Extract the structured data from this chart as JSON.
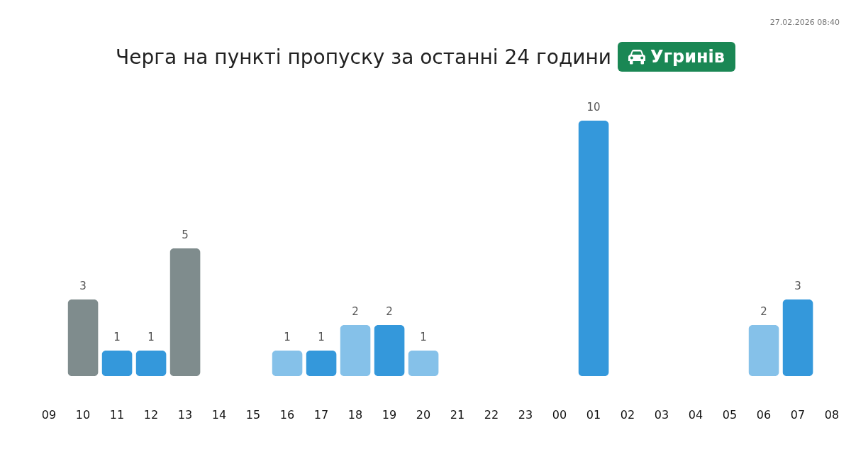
{
  "chart_data": {
    "type": "bar",
    "title": "Черга на пункті пропуску за останні 24 години",
    "subtitle": "Угринів",
    "annotations": [
      "27.02.2026 08:40"
    ],
    "categories": [
      "09",
      "10",
      "11",
      "12",
      "13",
      "14",
      "15",
      "16",
      "17",
      "18",
      "19",
      "20",
      "21",
      "22",
      "23",
      "00",
      "01",
      "02",
      "03",
      "04",
      "05",
      "06",
      "07",
      "08"
    ],
    "values": [
      null,
      3,
      1,
      1,
      5,
      null,
      null,
      1,
      1,
      2,
      2,
      1,
      null,
      null,
      null,
      null,
      10,
      null,
      null,
      null,
      null,
      2,
      3,
      null
    ],
    "colors": [
      null,
      "#7f8c8d",
      "#3498db",
      "#3498db",
      "#7f8c8d",
      null,
      null,
      "#85c1e9",
      "#3498db",
      "#85c1e9",
      "#3498db",
      "#85c1e9",
      null,
      null,
      null,
      null,
      "#3498db",
      null,
      null,
      null,
      null,
      "#85c1e9",
      "#3498db",
      null
    ],
    "data_labels": true
  }
}
